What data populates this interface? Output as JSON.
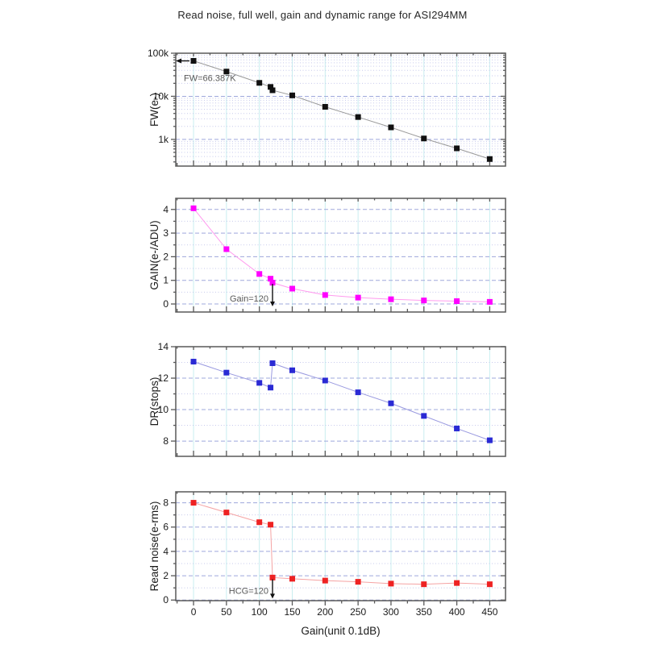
{
  "title": "Read noise, full well, gain and dynamic range for ASI294MM",
  "x_axis": {
    "label": "Gain(unit 0.1dB)",
    "ticks": [
      0,
      50,
      100,
      150,
      200,
      250,
      300,
      350,
      400,
      450
    ],
    "minor_step": 25,
    "range": [
      -27,
      474
    ]
  },
  "chart_data": [
    {
      "type": "line",
      "series_name": "full-well",
      "ylabel": "FW(e-)",
      "yscale": "log",
      "ylim": [
        240,
        100000
      ],
      "yticks": [
        {
          "value": 1000,
          "label": "1k"
        },
        {
          "value": 10000,
          "label": "10k"
        },
        {
          "value": 100000,
          "label": "100k"
        }
      ],
      "x": [
        0,
        50,
        100,
        117,
        120,
        150,
        200,
        250,
        300,
        350,
        400,
        450
      ],
      "values": [
        66387,
        37500,
        20500,
        16500,
        13800,
        10500,
        5700,
        3300,
        1900,
        1050,
        620,
        350
      ],
      "marker_color": "#111111",
      "line_color": "#999999",
      "annotation": {
        "text": "FW=66.387K",
        "arrow": "left",
        "x": 0,
        "y": 66387
      }
    },
    {
      "type": "line",
      "series_name": "gain",
      "ylabel": "GAIN(e-/ADU)",
      "yscale": "linear",
      "ylim": [
        -0.34,
        4.47
      ],
      "yticks": [
        {
          "value": 0,
          "label": "0"
        },
        {
          "value": 1,
          "label": "1"
        },
        {
          "value": 2,
          "label": "2"
        },
        {
          "value": 3,
          "label": "3"
        },
        {
          "value": 4,
          "label": "4"
        }
      ],
      "yticks_minor": [
        0.5,
        1.5,
        2.5,
        3.5
      ],
      "x": [
        0,
        50,
        100,
        117,
        120,
        150,
        200,
        250,
        300,
        350,
        400,
        450
      ],
      "values": [
        4.05,
        2.32,
        1.27,
        1.07,
        0.9,
        0.65,
        0.38,
        0.27,
        0.2,
        0.15,
        0.12,
        0.09
      ],
      "marker_color": "#ff00ff",
      "line_color": "#ff9bef",
      "annotation": {
        "text": "Gain=120",
        "arrow": "down",
        "x": 120,
        "y_from": 0.85,
        "y_to": -0.1
      }
    },
    {
      "type": "line",
      "series_name": "dynamic-range",
      "ylabel": "DR(stops)",
      "yscale": "linear",
      "ylim": [
        7.03,
        14
      ],
      "yticks": [
        {
          "value": 8,
          "label": "8"
        },
        {
          "value": 10,
          "label": "10"
        },
        {
          "value": 12,
          "label": "12"
        },
        {
          "value": 14,
          "label": "14"
        }
      ],
      "yticks_minor": [
        9,
        11,
        13
      ],
      "x": [
        0,
        50,
        100,
        117,
        120,
        150,
        200,
        250,
        300,
        350,
        400,
        450
      ],
      "values": [
        13.05,
        12.35,
        11.7,
        11.4,
        12.95,
        12.5,
        11.85,
        11.1,
        10.4,
        9.6,
        8.8,
        8.05
      ],
      "marker_color": "#2a2ad4",
      "line_color": "#9a9ae0",
      "annotation": null
    },
    {
      "type": "line",
      "series_name": "read-noise",
      "ylabel": "Read noise(e-rms)",
      "yscale": "linear",
      "ylim": [
        -0.05,
        8.9
      ],
      "yticks": [
        {
          "value": 0,
          "label": "0"
        },
        {
          "value": 2,
          "label": "2"
        },
        {
          "value": 4,
          "label": "4"
        },
        {
          "value": 6,
          "label": "6"
        },
        {
          "value": 8,
          "label": "8"
        }
      ],
      "yticks_minor": [
        1,
        3,
        5,
        7
      ],
      "x": [
        0,
        50,
        100,
        117,
        120,
        150,
        200,
        250,
        300,
        350,
        400,
        450
      ],
      "values": [
        8.0,
        7.2,
        6.4,
        6.2,
        1.85,
        1.75,
        1.6,
        1.5,
        1.35,
        1.3,
        1.4,
        1.3
      ],
      "marker_color": "#ee2222",
      "line_color": "#f5a3a3",
      "annotation": {
        "text": "HCG=120",
        "arrow": "down",
        "x": 120,
        "y_from": 1.7,
        "y_to": 0.12
      }
    }
  ],
  "colors": {
    "background": "#ffffff",
    "frame": "#595959",
    "tick": "#595959",
    "grid_vertical": "#c9eef0",
    "grid_major_h": "#9fa8dc",
    "grid_minor_h": "#c6c9ec",
    "tick_label": "#1a1a1a",
    "axis_label": "#1a1a1a",
    "annotation_text": "#595959",
    "annotation_arrow": "#111111"
  }
}
